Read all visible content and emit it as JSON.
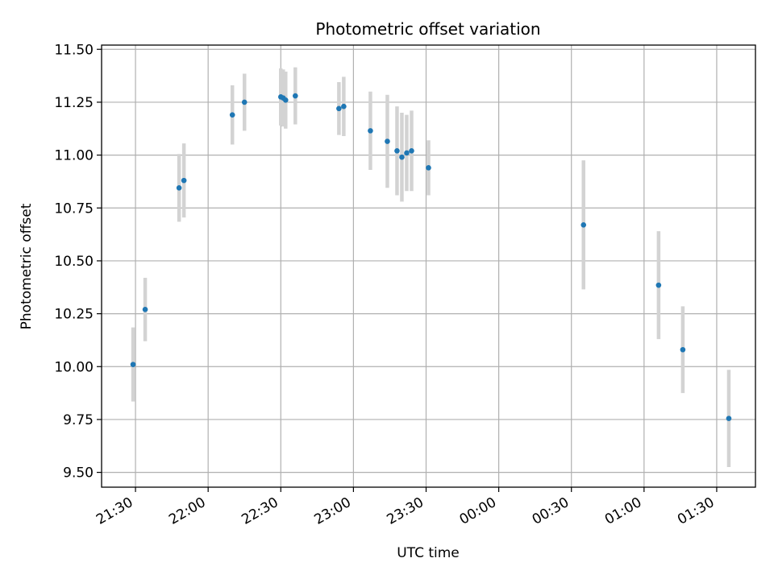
{
  "chart_data": {
    "type": "scatter",
    "title": "Photometric offset variation",
    "xlabel": "UTC time",
    "ylabel": "Photometric offset",
    "grid": true,
    "ylim": [
      9.43,
      11.52
    ],
    "xlim": [
      "21:16",
      "01:46"
    ],
    "ytick_labels": [
      "9.50",
      "9.75",
      "10.00",
      "10.25",
      "10.50",
      "10.75",
      "11.00",
      "11.25",
      "11.50"
    ],
    "xtick_labels": [
      "21:30",
      "22:00",
      "22:30",
      "23:00",
      "23:30",
      "00:00",
      "00:30",
      "01:00",
      "01:30"
    ],
    "colors": {
      "marker": "#1f77b4",
      "errorbar": "#d3d3d3",
      "grid": "#b0b0b0"
    },
    "points": [
      {
        "x": "21:29",
        "y": 10.01,
        "yerr": 0.175
      },
      {
        "x": "21:34",
        "y": 10.27,
        "yerr": 0.15
      },
      {
        "x": "21:48",
        "y": 10.845,
        "yerr": 0.16
      },
      {
        "x": "21:50",
        "y": 10.88,
        "yerr": 0.175
      },
      {
        "x": "22:10",
        "y": 11.19,
        "yerr": 0.14
      },
      {
        "x": "22:15",
        "y": 11.25,
        "yerr": 0.135
      },
      {
        "x": "22:30",
        "y": 11.275,
        "yerr": 0.135
      },
      {
        "x": "22:31",
        "y": 11.27,
        "yerr": 0.135
      },
      {
        "x": "22:32",
        "y": 11.26,
        "yerr": 0.135
      },
      {
        "x": "22:36",
        "y": 11.28,
        "yerr": 0.135
      },
      {
        "x": "22:54",
        "y": 11.22,
        "yerr": 0.125
      },
      {
        "x": "22:56",
        "y": 11.23,
        "yerr": 0.14
      },
      {
        "x": "23:07",
        "y": 11.115,
        "yerr": 0.185
      },
      {
        "x": "23:14",
        "y": 11.065,
        "yerr": 0.22
      },
      {
        "x": "23:18",
        "y": 11.02,
        "yerr": 0.21
      },
      {
        "x": "23:20",
        "y": 10.99,
        "yerr": 0.21
      },
      {
        "x": "23:22",
        "y": 11.01,
        "yerr": 0.18
      },
      {
        "x": "23:24",
        "y": 11.02,
        "yerr": 0.19
      },
      {
        "x": "23:31",
        "y": 10.94,
        "yerr": 0.13
      },
      {
        "x": "00:35",
        "y": 10.67,
        "yerr": 0.305
      },
      {
        "x": "01:06",
        "y": 10.385,
        "yerr": 0.255
      },
      {
        "x": "01:16",
        "y": 10.08,
        "yerr": 0.205
      },
      {
        "x": "01:35",
        "y": 9.755,
        "yerr": 0.23
      }
    ]
  }
}
